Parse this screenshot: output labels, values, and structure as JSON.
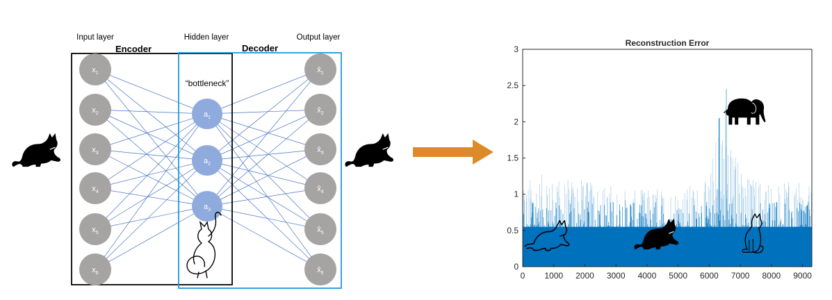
{
  "autoencoder": {
    "layer_labels": {
      "input": "Input layer",
      "hidden": "Hidden layer",
      "output": "Output layer"
    },
    "section_labels": {
      "encoder": "Encoder",
      "decoder": "Decoder"
    },
    "bottleneck_label": "“bottleneck”",
    "input_nodes": [
      {
        "base": "x",
        "sub": "1"
      },
      {
        "base": "x",
        "sub": "2"
      },
      {
        "base": "x",
        "sub": "3"
      },
      {
        "base": "x",
        "sub": "4"
      },
      {
        "base": "x",
        "sub": "5"
      },
      {
        "base": "x",
        "sub": "6"
      }
    ],
    "hidden_nodes": [
      {
        "base": "a",
        "sub": "1"
      },
      {
        "base": "a",
        "sub": "2"
      },
      {
        "base": "a",
        "sub": "3"
      }
    ],
    "output_nodes": [
      {
        "base": "x̂",
        "sub": "1"
      },
      {
        "base": "x̂",
        "sub": "2"
      },
      {
        "base": "x̂",
        "sub": "3"
      },
      {
        "base": "x̂",
        "sub": "4"
      },
      {
        "base": "x̂",
        "sub": "5"
      },
      {
        "base": "x̂",
        "sub": "6"
      }
    ],
    "colors": {
      "io_node": "#a6a3a3",
      "hidden_node": "#8faadc",
      "edge": "#4472c4",
      "encoder_box": "#000000",
      "decoder_box": "#1c9ad6",
      "arrow": "#dd8a2a"
    },
    "icons": [
      "cat-silhouette-icon",
      "cat-outline-icon",
      "elephant-silhouette-icon"
    ]
  },
  "chart_data": {
    "type": "bar",
    "title": "Reconstruction Error",
    "xlabel": "",
    "ylabel": "",
    "xlim": [
      0,
      9300
    ],
    "ylim": [
      0,
      3
    ],
    "x_ticks": [
      0,
      1000,
      2000,
      3000,
      4000,
      5000,
      6000,
      7000,
      8000,
      9000
    ],
    "y_ticks": [
      0,
      0.5,
      1,
      1.5,
      2,
      2.5,
      3
    ],
    "grid": false,
    "series_color": "#0072bd",
    "approx_envelope": [
      {
        "x": 0,
        "y": 1.1
      },
      {
        "x": 300,
        "y": 1.4
      },
      {
        "x": 800,
        "y": 1.2
      },
      {
        "x": 1500,
        "y": 1.25
      },
      {
        "x": 2500,
        "y": 1.15
      },
      {
        "x": 3500,
        "y": 1.05
      },
      {
        "x": 4500,
        "y": 1.1
      },
      {
        "x": 5500,
        "y": 1.15
      },
      {
        "x": 6000,
        "y": 1.2
      },
      {
        "x": 6300,
        "y": 2.05
      },
      {
        "x": 6550,
        "y": 2.45
      },
      {
        "x": 7000,
        "y": 1.3
      },
      {
        "x": 8000,
        "y": 1.2
      },
      {
        "x": 9000,
        "y": 1.15
      },
      {
        "x": 9300,
        "y": 1.1
      }
    ]
  }
}
